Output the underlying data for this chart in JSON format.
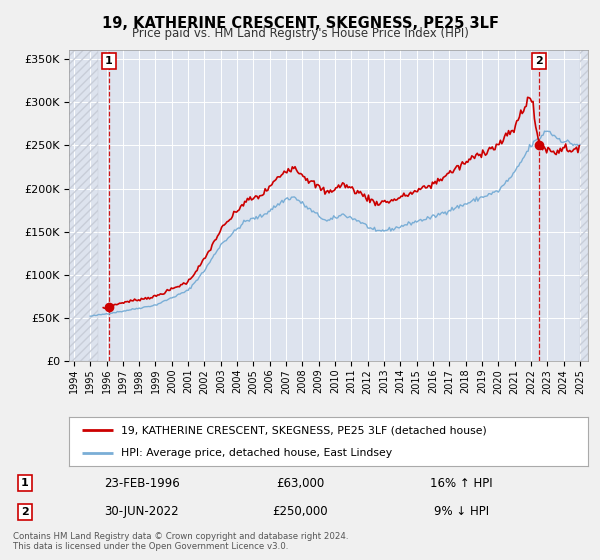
{
  "title": "19, KATHERINE CRESCENT, SKEGNESS, PE25 3LF",
  "subtitle": "Price paid vs. HM Land Registry's House Price Index (HPI)",
  "bg_color": "#dde3ee",
  "grid_color": "#ffffff",
  "red_color": "#cc0000",
  "blue_color": "#7aaed6",
  "hatch_color": "#c8cdd8",
  "marker1_date": 1996.14,
  "marker1_price": 63000,
  "marker2_date": 2022.5,
  "marker2_price": 250000,
  "label1_date": "23-FEB-1996",
  "label1_price": "£63,000",
  "label1_hpi": "16% ↑ HPI",
  "label2_date": "30-JUN-2022",
  "label2_price": "£250,000",
  "label2_hpi": "9% ↓ HPI",
  "legend_line1": "19, KATHERINE CRESCENT, SKEGNESS, PE25 3LF (detached house)",
  "legend_line2": "HPI: Average price, detached house, East Lindsey",
  "footnote": "Contains HM Land Registry data © Crown copyright and database right 2024.\nThis data is licensed under the Open Government Licence v3.0.",
  "xlim_start": 1993.7,
  "xlim_end": 2025.5,
  "ylim_max": 360000
}
